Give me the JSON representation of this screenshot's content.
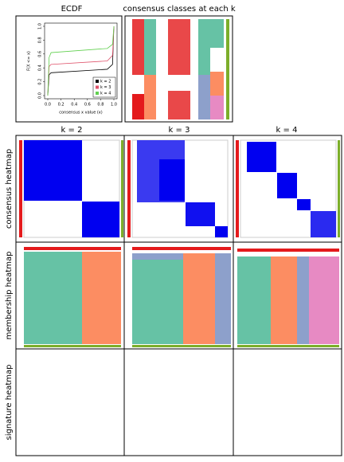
{
  "chart_data": {
    "type": "line",
    "title": "ECDF",
    "x_label": "consensus x value (x)",
    "y_label": "F(X <= x)",
    "x": [
      0,
      0.02,
      0.05,
      0.9,
      0.98,
      1.0
    ],
    "series": [
      {
        "name": "k = 2",
        "color": "#000000",
        "values": [
          0,
          0.3,
          0.33,
          0.38,
          0.45,
          1.0
        ]
      },
      {
        "name": "k = 3",
        "color": "#df536b",
        "values": [
          0,
          0.42,
          0.45,
          0.5,
          0.58,
          1.0
        ]
      },
      {
        "name": "k = 4",
        "color": "#61d04f",
        "values": [
          0,
          0.55,
          0.62,
          0.68,
          0.74,
          1.0
        ]
      }
    ],
    "xlim": [
      0,
      1
    ],
    "ylim": [
      0,
      1
    ],
    "xticks": [
      {
        "value": 0,
        "label": "0.0"
      },
      0.2,
      0.4,
      0.6,
      0.8,
      {
        "value": 1,
        "label": "1.0"
      }
    ],
    "yticks": [
      {
        "value": 0,
        "label": "0.0"
      },
      0.2,
      0.4,
      0.6,
      0.8,
      {
        "value": 1,
        "label": "1.0"
      }
    ],
    "legend": "bottom-right"
  },
  "panels": {
    "classes_title": "consensus classes at each k",
    "columns": [
      "k = 2",
      "k = 3",
      "k = 4"
    ],
    "rows": [
      "consensus heatmap",
      "membership heatmap",
      "signature heatmap"
    ]
  }
}
